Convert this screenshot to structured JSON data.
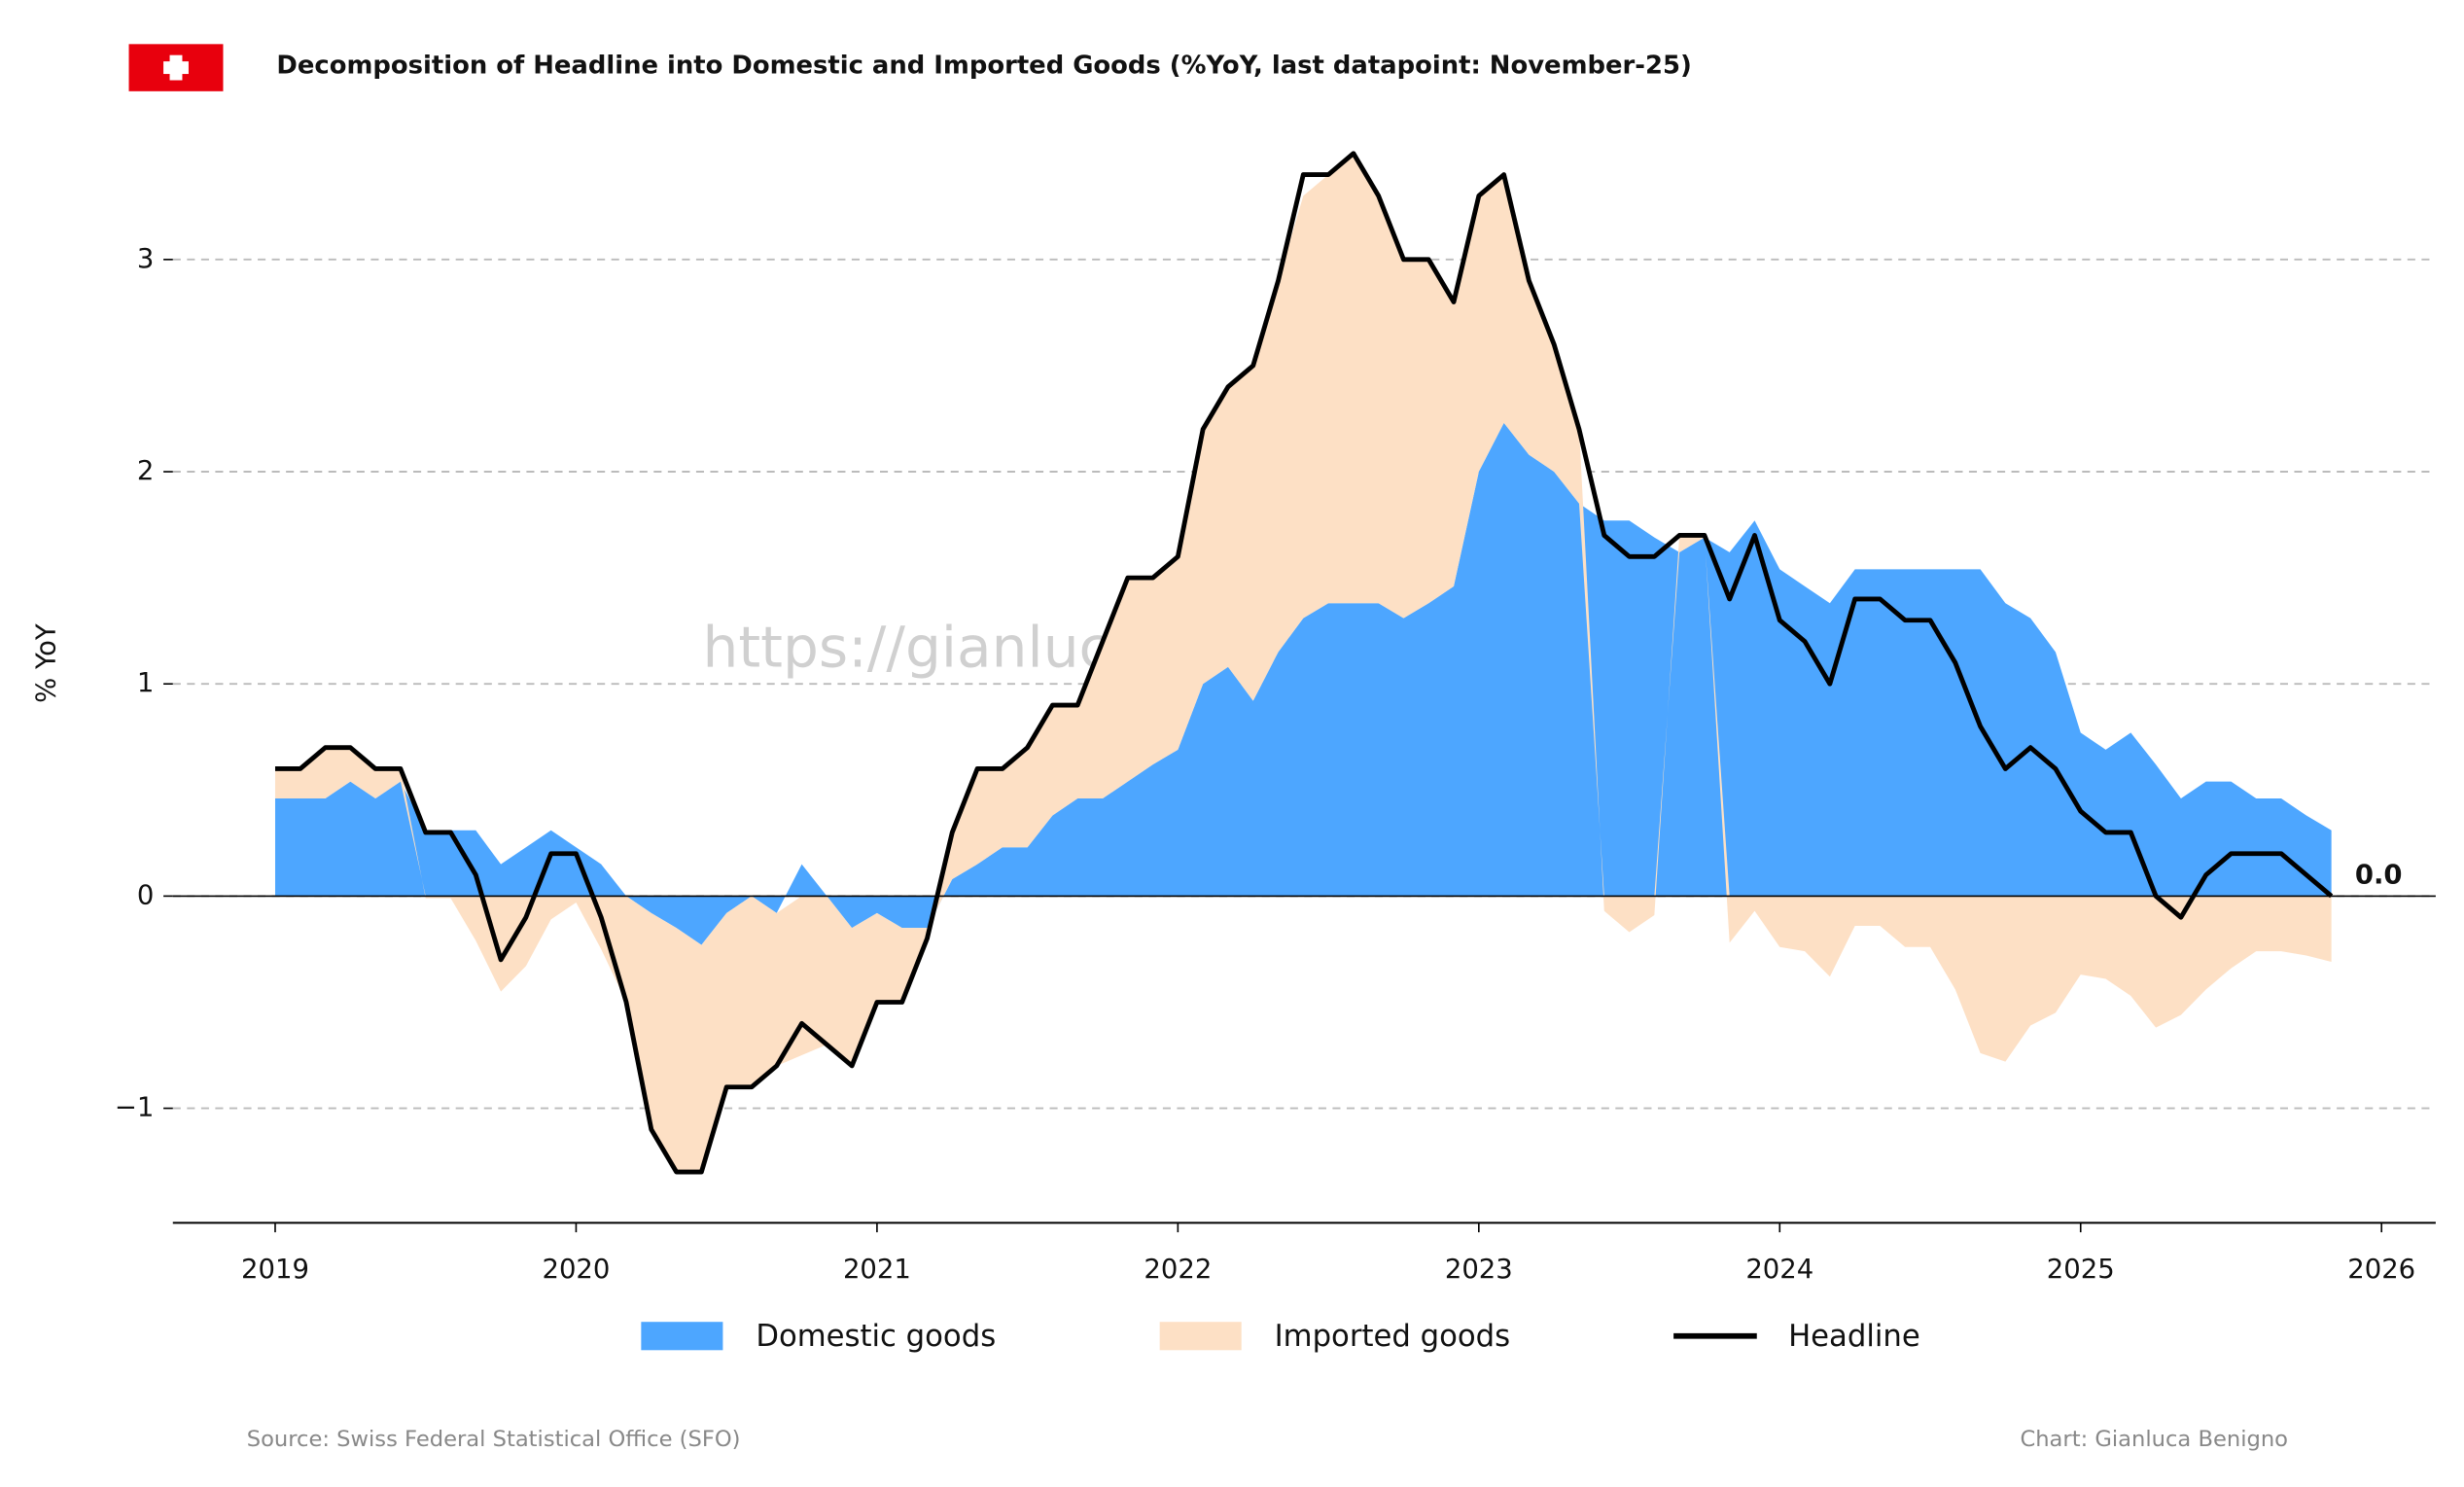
{
  "chart_data": {
    "type": "stacked-area-line",
    "title": "Decomposition of Headline into Domestic and Imported Goods (%YoY, last datapoint: November-25)",
    "y_label": "% YoY",
    "watermark": "https://gianlucabenigno.substack.com",
    "source": "Source: Swiss Federal Statistical Office (SFO)",
    "credit": "Chart: Gianluca Benigno",
    "annotations": [
      "0.0"
    ],
    "x": [
      "2019-01",
      "2019-02",
      "2019-03",
      "2019-04",
      "2019-05",
      "2019-06",
      "2019-07",
      "2019-08",
      "2019-09",
      "2019-10",
      "2019-11",
      "2019-12",
      "2020-01",
      "2020-02",
      "2020-03",
      "2020-04",
      "2020-05",
      "2020-06",
      "2020-07",
      "2020-08",
      "2020-09",
      "2020-10",
      "2020-11",
      "2020-12",
      "2021-01",
      "2021-02",
      "2021-03",
      "2021-04",
      "2021-05",
      "2021-06",
      "2021-07",
      "2021-08",
      "2021-09",
      "2021-10",
      "2021-11",
      "2021-12",
      "2022-01",
      "2022-02",
      "2022-03",
      "2022-04",
      "2022-05",
      "2022-06",
      "2022-07",
      "2022-08",
      "2022-09",
      "2022-10",
      "2022-11",
      "2022-12",
      "2023-01",
      "2023-02",
      "2023-03",
      "2023-04",
      "2023-05",
      "2023-06",
      "2023-07",
      "2023-08",
      "2023-09",
      "2023-10",
      "2023-11",
      "2023-12",
      "2024-01",
      "2024-02",
      "2024-03",
      "2024-04",
      "2024-05",
      "2024-06",
      "2024-07",
      "2024-08",
      "2024-09",
      "2024-10",
      "2024-11",
      "2024-12",
      "2025-01",
      "2025-02",
      "2025-03",
      "2025-04",
      "2025-05",
      "2025-06",
      "2025-07",
      "2025-08",
      "2025-09",
      "2025-10",
      "2025-11"
    ],
    "series": [
      {
        "name": "Domestic goods",
        "color": "#4da6ff",
        "kind": "area",
        "values": [
          0.46,
          0.46,
          0.46,
          0.54,
          0.46,
          0.54,
          0.31,
          0.31,
          0.31,
          0.15,
          0.23,
          0.31,
          0.23,
          0.15,
          0,
          -0.08,
          -0.15,
          -0.23,
          -0.08,
          0,
          -0.08,
          0.15,
          0,
          -0.15,
          -0.08,
          -0.15,
          -0.15,
          0.08,
          0.15,
          0.23,
          0.23,
          0.38,
          0.46,
          0.46,
          0.54,
          0.62,
          0.69,
          1.0,
          1.08,
          0.92,
          1.15,
          1.31,
          1.38,
          1.38,
          1.38,
          1.31,
          1.38,
          1.46,
          2.0,
          2.23,
          2.08,
          2.0,
          1.85,
          1.77,
          1.77,
          1.69,
          1.62,
          1.69,
          1.62,
          1.77,
          1.54,
          1.46,
          1.38,
          1.54,
          1.54,
          1.54,
          1.54,
          1.54,
          1.54,
          1.38,
          1.31,
          1.15,
          0.77,
          0.69,
          0.77,
          0.62,
          0.46,
          0.54,
          0.54,
          0.46,
          0.46,
          0.38,
          0.31
        ]
      },
      {
        "name": "Imported goods",
        "color": "#fde0c5",
        "kind": "area",
        "values": [
          0.14,
          0.14,
          0.24,
          0.16,
          0.14,
          0.06,
          -0.01,
          -0.01,
          -0.21,
          -0.45,
          -0.33,
          -0.11,
          -0.03,
          -0.25,
          -0.5,
          -1.02,
          -1.15,
          -1.07,
          -0.82,
          -0.9,
          -0.72,
          -0.75,
          -0.7,
          -0.65,
          -0.42,
          -0.35,
          -0.05,
          0.22,
          0.45,
          0.37,
          0.47,
          0.52,
          0.44,
          0.74,
          0.96,
          0.88,
          0.91,
          1.2,
          1.32,
          1.58,
          1.75,
          1.99,
          2.02,
          2.12,
          1.92,
          1.69,
          1.62,
          1.34,
          1.3,
          1.17,
          0.82,
          0.6,
          0.35,
          -0.07,
          -0.17,
          -0.09,
          0.08,
          0.01,
          -0.22,
          -0.07,
          -0.24,
          -0.26,
          -0.38,
          -0.14,
          -0.14,
          -0.24,
          -0.24,
          -0.44,
          -0.74,
          -0.78,
          -0.61,
          -0.55,
          -0.37,
          -0.39,
          -0.47,
          -0.62,
          -0.56,
          -0.44,
          -0.34,
          -0.26,
          -0.26,
          -0.28,
          -0.31
        ]
      },
      {
        "name": "Headline",
        "color": "#000000",
        "kind": "line",
        "values": [
          0.6,
          0.6,
          0.7,
          0.7,
          0.6,
          0.6,
          0.3,
          0.3,
          0.1,
          -0.3,
          -0.1,
          0.2,
          0.2,
          -0.1,
          -0.5,
          -1.1,
          -1.3,
          -1.3,
          -0.9,
          -0.9,
          -0.8,
          -0.6,
          -0.7,
          -0.8,
          -0.5,
          -0.5,
          -0.2,
          0.3,
          0.6,
          0.6,
          0.7,
          0.9,
          0.9,
          1.2,
          1.5,
          1.5,
          1.6,
          2.2,
          2.4,
          2.5,
          2.9,
          3.4,
          3.4,
          3.5,
          3.3,
          3.0,
          3.0,
          2.8,
          3.3,
          3.4,
          2.9,
          2.6,
          2.2,
          1.7,
          1.6,
          1.6,
          1.7,
          1.7,
          1.4,
          1.7,
          1.3,
          1.2,
          1.0,
          1.4,
          1.4,
          1.3,
          1.3,
          1.1,
          0.8,
          0.6,
          0.7,
          0.6,
          0.4,
          0.3,
          0.3,
          0.0,
          -0.1,
          0.1,
          0.2,
          0.2,
          0.2,
          0.1,
          0.0
        ]
      }
    ],
    "xlim": [
      2018.66,
      2026.18
    ],
    "xticks": [
      2019,
      2020,
      2021,
      2022,
      2023,
      2024,
      2025,
      2026
    ],
    "ylim": [
      -1.54,
      3.63
    ],
    "yticks": [
      {
        "value": -1,
        "label": "−1"
      },
      0,
      1,
      2,
      3
    ],
    "grid": true
  }
}
